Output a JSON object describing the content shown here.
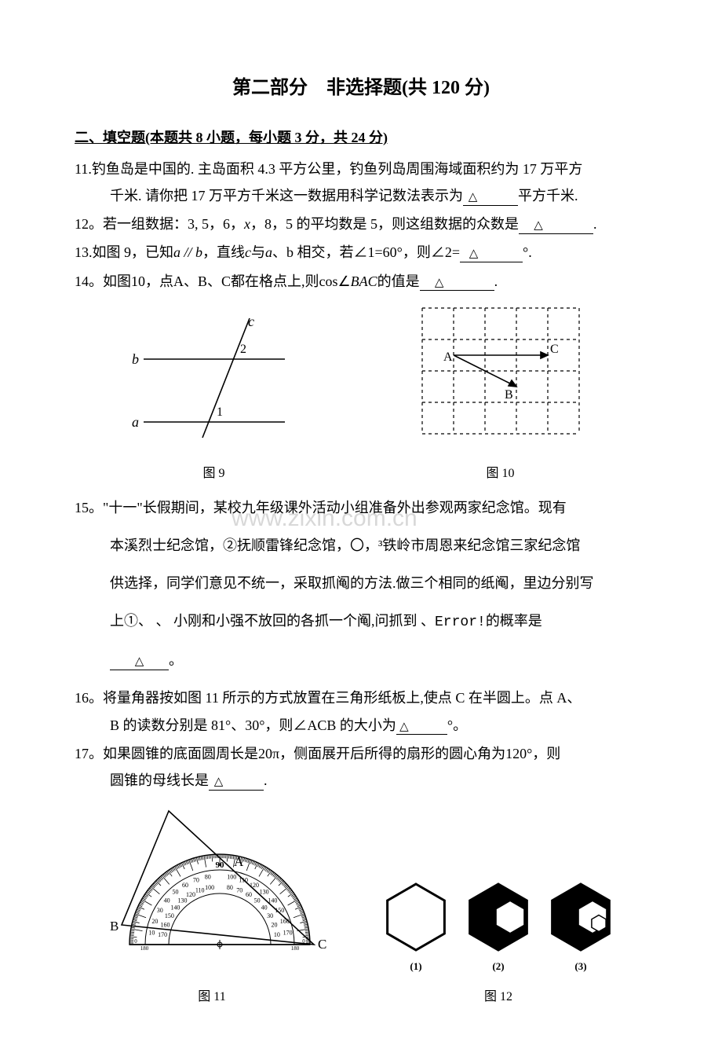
{
  "title": "第二部分　非选择题(共 120 分)",
  "sectionHeader": "二、填空题(本题共 8 小题，每小题 3 分，共 24 分)",
  "q11": {
    "num": "11.",
    "l1": "钓鱼岛是中国的. 主岛面积 4.3 平方公里，钓鱼列岛周围海域面积约为 17 万平方",
    "l2_a": "千米. 请你把 17 万平方千米这一数据用科学记数法表示为",
    "l2_b": "平方千米."
  },
  "q12": {
    "num": "12。",
    "a": "若一组数据：3, 5，6，",
    "x": "x",
    "b": "，8，5 的平均数是 5，则这组数据的众数是",
    "end": "."
  },
  "q13": {
    "num": "13.",
    "a": "如图 9，已知",
    "ab": "a // b",
    "b": "，直线",
    "c": "c",
    "d": "与",
    "avar": "a",
    "e": "、b 相交，若∠1=60°，则∠2=",
    "deg": "°."
  },
  "q14": {
    "num": "14。",
    "a": "如图10，点A、B、C都在格点上,则cos∠",
    "bac": "BAC",
    "b": "的值是",
    "end": "."
  },
  "fig9": {
    "caption": "图 9",
    "labels": {
      "a": "a",
      "b": "b",
      "c": "c",
      "one": "1",
      "two": "2"
    },
    "style": {
      "stroke": "#000000",
      "strokeWidth": 1.5,
      "fontSize": 18
    }
  },
  "fig10": {
    "caption": "图 10",
    "labels": {
      "A": "A",
      "B": "B",
      "C": "C"
    },
    "style": {
      "gridStroke": "#000000",
      "gridDash": "4,4",
      "lineStroke": "#000000",
      "strokeWidth": 1.5,
      "gridCell": 40
    }
  },
  "q15": {
    "num": "15。",
    "l1": "\"十一\"长假期间，某校九年级课外活动小组准备外出参观两家纪念馆。现有",
    "p1": "本溪烈士纪念馆，②抚顺雷锋纪念馆，〇，³铁岭市周恩来纪念馆三家纪念馆",
    "p2": "供选择，同学们意见不统一，采取抓阄的方法.做三个相同的纸阄，里边分别写",
    "p3a": "上①、 、 小刚和小强不放回的各抓一个阄,问抓到 、",
    "err": "Error!",
    "p3b": "的概率是",
    "p4end": "。"
  },
  "watermark": "www.zixin.com.cn",
  "q16": {
    "num": "16。",
    "l1": "将量角器按如图 11 所示的方式放置在三角形纸板上,使点 C 在半圆上。点 A、",
    "l2a": "B 的读数分别是 81°、30°，则∠ACB 的大小为",
    "l2deg": "°。"
  },
  "q17": {
    "num": "17。",
    "l1": "如果圆锥的底面圆周长是20π，侧面展开后所得的扇形的圆心角为120°，则",
    "l2a": "圆锥的母线长是",
    "l2end": "."
  },
  "fig11": {
    "caption": "图 11",
    "labels": {
      "A": "A",
      "B": "B",
      "C": "C",
      "ninety": "90"
    },
    "ticks": [
      "10",
      "20",
      "30",
      "40",
      "50",
      "60",
      "70",
      "80",
      "100",
      "110",
      "120",
      "130",
      "140",
      "150",
      "160",
      "170"
    ],
    "bottomTicks": [
      "0",
      "180",
      "10",
      "170",
      "0",
      "180",
      "10",
      "170"
    ],
    "style": {
      "stroke": "#000000",
      "strokeWidth": 1.5
    }
  },
  "fig12": {
    "caption": "图 12",
    "sublabels": [
      "(1)",
      "(2)",
      "(3)"
    ],
    "style": {
      "stroke": "#000000",
      "strokeWidth": 2,
      "fill": "#000000"
    }
  },
  "blankMark": "△"
}
